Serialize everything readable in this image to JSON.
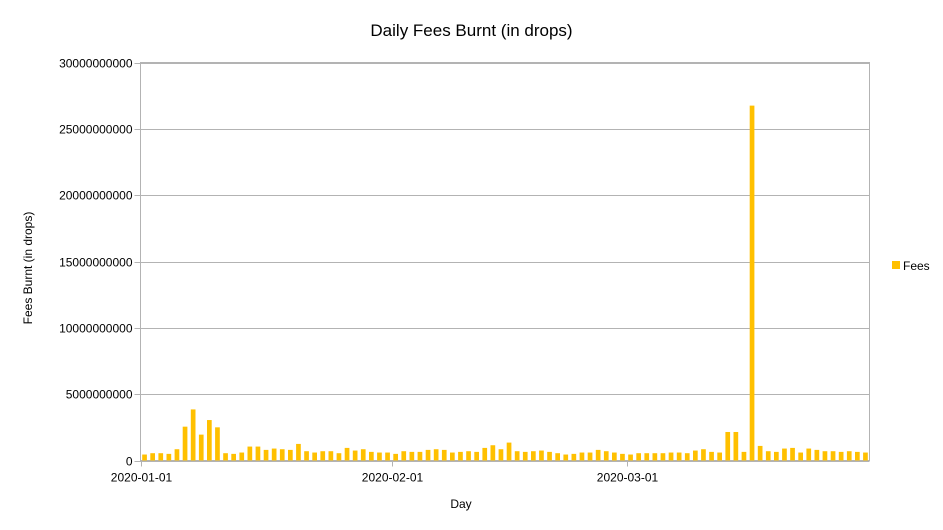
{
  "chart_data": {
    "type": "bar",
    "title": "Daily Fees Burnt (in drops)",
    "xlabel": "Day",
    "ylabel": "Fees Burnt (in drops)",
    "ylim": [
      0,
      30000000000
    ],
    "y_ticks": [
      0,
      5000000000,
      10000000000,
      15000000000,
      20000000000,
      25000000000,
      30000000000
    ],
    "y_tick_labels": [
      "0",
      "5000000000",
      "10000000000",
      "15000000000",
      "20000000000",
      "25000000000",
      "30000000000"
    ],
    "x_tick_labels": [
      "2020-01-01",
      "2020-02-01",
      "2020-03-01"
    ],
    "x_tick_dates": [
      "2020-01-01",
      "2020-02-01",
      "2020-03-01"
    ],
    "grid": true,
    "legend_position": "right",
    "series": [
      {
        "name": "Fees",
        "color": "#ffc000",
        "x": [
          "2020-01-01",
          "2020-01-02",
          "2020-01-03",
          "2020-01-04",
          "2020-01-05",
          "2020-01-06",
          "2020-01-07",
          "2020-01-08",
          "2020-01-09",
          "2020-01-10",
          "2020-01-11",
          "2020-01-12",
          "2020-01-13",
          "2020-01-14",
          "2020-01-15",
          "2020-01-16",
          "2020-01-17",
          "2020-01-18",
          "2020-01-19",
          "2020-01-20",
          "2020-01-21",
          "2020-01-22",
          "2020-01-23",
          "2020-01-24",
          "2020-01-25",
          "2020-01-26",
          "2020-01-27",
          "2020-01-28",
          "2020-01-29",
          "2020-01-30",
          "2020-01-31",
          "2020-02-01",
          "2020-02-02",
          "2020-02-03",
          "2020-02-04",
          "2020-02-05",
          "2020-02-06",
          "2020-02-07",
          "2020-02-08",
          "2020-02-09",
          "2020-02-10",
          "2020-02-11",
          "2020-02-12",
          "2020-02-13",
          "2020-02-14",
          "2020-02-15",
          "2020-02-16",
          "2020-02-17",
          "2020-02-18",
          "2020-02-19",
          "2020-02-20",
          "2020-02-21",
          "2020-02-22",
          "2020-02-23",
          "2020-02-24",
          "2020-02-25",
          "2020-02-26",
          "2020-02-27",
          "2020-02-28",
          "2020-02-29",
          "2020-03-01",
          "2020-03-02",
          "2020-03-03",
          "2020-03-04",
          "2020-03-05",
          "2020-03-06",
          "2020-03-07",
          "2020-03-08",
          "2020-03-09",
          "2020-03-10",
          "2020-03-11",
          "2020-03-12",
          "2020-03-13",
          "2020-03-14",
          "2020-03-15",
          "2020-03-16",
          "2020-03-17",
          "2020-03-18",
          "2020-03-19",
          "2020-03-20",
          "2020-03-21",
          "2020-03-22",
          "2020-03-23",
          "2020-03-24",
          "2020-03-25",
          "2020-03-26",
          "2020-03-27",
          "2020-03-28",
          "2020-03-29",
          "2020-03-30"
        ],
        "values": [
          450000000,
          550000000,
          550000000,
          500000000,
          850000000,
          2550000000,
          3850000000,
          1950000000,
          3050000000,
          2500000000,
          550000000,
          500000000,
          600000000,
          1050000000,
          1050000000,
          800000000,
          900000000,
          850000000,
          800000000,
          1250000000,
          700000000,
          600000000,
          700000000,
          700000000,
          550000000,
          950000000,
          750000000,
          850000000,
          650000000,
          600000000,
          600000000,
          500000000,
          700000000,
          650000000,
          650000000,
          800000000,
          850000000,
          800000000,
          600000000,
          650000000,
          700000000,
          650000000,
          950000000,
          1150000000,
          850000000,
          1350000000,
          700000000,
          650000000,
          700000000,
          750000000,
          650000000,
          550000000,
          450000000,
          500000000,
          600000000,
          600000000,
          800000000,
          700000000,
          600000000,
          500000000,
          450000000,
          550000000,
          550000000,
          550000000,
          550000000,
          600000000,
          600000000,
          550000000,
          750000000,
          850000000,
          650000000,
          600000000,
          2150000000,
          2150000000,
          650000000,
          26750000000,
          1100000000,
          700000000,
          650000000,
          900000000,
          950000000,
          600000000,
          900000000,
          800000000,
          700000000,
          700000000,
          650000000,
          700000000,
          650000000,
          600000000
        ]
      }
    ]
  }
}
